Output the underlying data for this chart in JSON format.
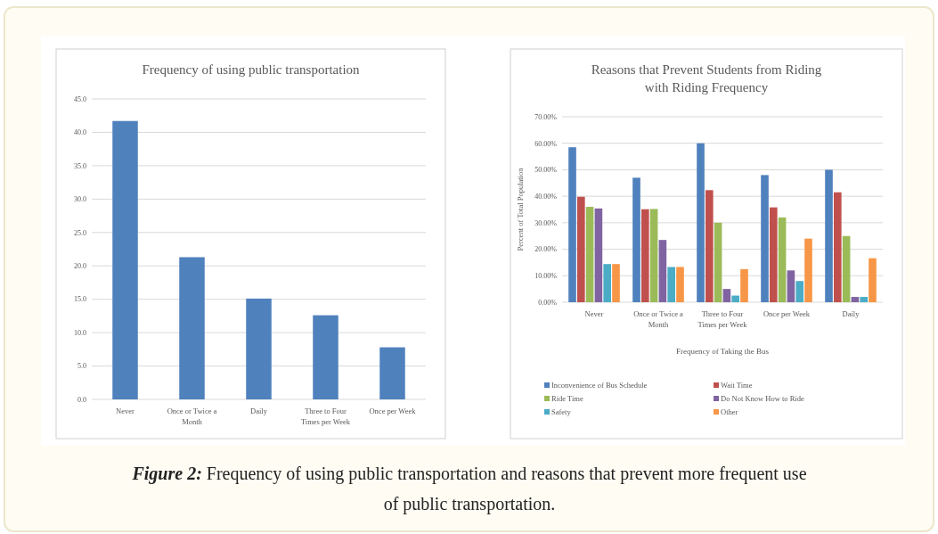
{
  "chart_data": [
    {
      "type": "bar",
      "title": "Frequency of using public transportation",
      "categories": [
        "Never",
        "Once or Twice a Month",
        "Daily",
        "Three to Four Times per Week",
        "Once per Week"
      ],
      "values": [
        41.7,
        21.3,
        15.1,
        12.6,
        7.8
      ],
      "color": "#4f81bd",
      "ylim": [
        0,
        45
      ],
      "yticks": [
        {
          "value": 0,
          "label": "0.0"
        },
        {
          "value": 5,
          "label": "5.0"
        },
        {
          "value": 10,
          "label": "10.0"
        },
        {
          "value": 15,
          "label": "15.0"
        },
        {
          "value": 20,
          "label": "20.0"
        },
        {
          "value": 25,
          "label": "25.0"
        },
        {
          "value": 30,
          "label": "30.0"
        },
        {
          "value": 35,
          "label": "35.0"
        },
        {
          "value": 40,
          "label": "40.0"
        },
        {
          "value": 45,
          "label": "45.0"
        }
      ],
      "grid": "y",
      "legend": false
    },
    {
      "type": "bar",
      "title": "Reasons that Prevent Students from Riding with Riding Frequency",
      "xlabel": "Frequency of Taking the Bus",
      "ylabel": "Percent of Total Population",
      "categories": [
        "Never",
        "Once or Twice a Month",
        "Three to Four Times per Week",
        "Once per Week",
        "Daily"
      ],
      "series": [
        {
          "name": "Inconvenience of Bus Schedule",
          "color": "#4f81bd",
          "values": [
            58.5,
            47,
            60,
            48,
            50
          ]
        },
        {
          "name": "Wait Time",
          "color": "#c0504d",
          "values": [
            39.8,
            35.1,
            42.3,
            35.8,
            41.5
          ]
        },
        {
          "name": "Ride Time",
          "color": "#9bbb59",
          "values": [
            36,
            35.2,
            30,
            32,
            25
          ]
        },
        {
          "name": "Do Not Know How to Ride",
          "color": "#8064a2",
          "values": [
            35.4,
            23.5,
            5,
            12,
            2
          ]
        },
        {
          "name": "Safety",
          "color": "#4bacc6",
          "values": [
            14.4,
            13.3,
            2.5,
            8,
            2
          ]
        },
        {
          "name": "Other",
          "color": "#f79646",
          "values": [
            14.4,
            13.3,
            12.5,
            24,
            16.6
          ]
        }
      ],
      "ylim": [
        0,
        70
      ],
      "yticks": [
        {
          "value": 0,
          "label": "0.00%"
        },
        {
          "value": 10,
          "label": "10.00%"
        },
        {
          "value": 20,
          "label": "20.00%"
        },
        {
          "value": 30,
          "label": "30.00%"
        },
        {
          "value": 40,
          "label": "40.00%"
        },
        {
          "value": 50,
          "label": "50.00%"
        },
        {
          "value": 60,
          "label": "60.00%"
        },
        {
          "value": 70,
          "label": "70.00%"
        }
      ],
      "grid": "y",
      "legend": "bottom",
      "annotations": [
        "Figure 2: Frequency of using public transportation and reasons that prevent more frequent use of public transportation."
      ]
    }
  ]
}
